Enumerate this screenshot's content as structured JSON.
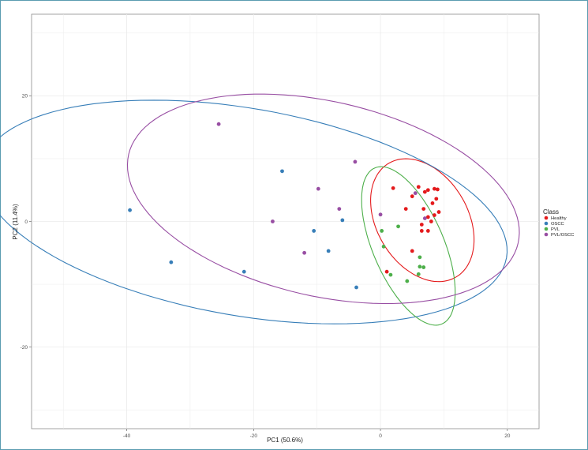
{
  "chart_data": {
    "type": "scatter",
    "xlabel": "PC1 (50.6%)",
    "ylabel": "PC2 (11.4%)",
    "xlim": [
      -55,
      25
    ],
    "ylim": [
      -33,
      33
    ],
    "xticks": [
      -40,
      -20,
      0,
      20
    ],
    "yticks": [
      -20,
      0,
      20
    ],
    "xtick_labels": [
      "-40",
      "-20",
      "0",
      "20"
    ],
    "ytick_labels": [
      "-20",
      "0",
      "20"
    ],
    "grid": true,
    "legend": {
      "title": "Class",
      "placement": "right"
    },
    "series": [
      {
        "name": "Healthy",
        "color": "#e41a1c",
        "points": [
          [
            2,
            5.3
          ],
          [
            6,
            5.5
          ],
          [
            5,
            4
          ],
          [
            7,
            4.7
          ],
          [
            7.5,
            5
          ],
          [
            8.5,
            5.2
          ],
          [
            9,
            5.1
          ],
          [
            8.8,
            3.6
          ],
          [
            8.2,
            2.9
          ],
          [
            6.8,
            2
          ],
          [
            4,
            2
          ],
          [
            9.2,
            1.5
          ],
          [
            8.5,
            1
          ],
          [
            7.5,
            0.7
          ],
          [
            8,
            0
          ],
          [
            6.5,
            -0.5
          ],
          [
            7.5,
            -1.5
          ],
          [
            6.5,
            -1.5
          ],
          [
            5,
            -4.7
          ],
          [
            1,
            -8
          ]
        ],
        "ellipse": {
          "cx": 6.6,
          "cy": 0.2,
          "rx": 7.2,
          "ry": 10.5,
          "angle": 30
        }
      },
      {
        "name": "OSCC",
        "color": "#377eb8",
        "points": [
          [
            -39.5,
            1.8
          ],
          [
            -33,
            -6.5
          ],
          [
            -21.5,
            -8
          ],
          [
            -15.5,
            8
          ],
          [
            -10.5,
            -1.5
          ],
          [
            -8.2,
            -4.7
          ],
          [
            -6,
            0.2
          ],
          [
            -3.8,
            -10.5
          ]
        ],
        "ellipse": {
          "cx": -21.5,
          "cy": 1.5,
          "rx": 42,
          "ry": 16.5,
          "angle": -10
        }
      },
      {
        "name": "PVL",
        "color": "#4daf4a",
        "points": [
          [
            2.8,
            -0.8
          ],
          [
            0.2,
            -1.5
          ],
          [
            0.5,
            -4
          ],
          [
            6.2,
            -5.7
          ],
          [
            6.2,
            -7.2
          ],
          [
            6.8,
            -7.3
          ],
          [
            1.6,
            -8.5
          ],
          [
            6,
            -8.4
          ],
          [
            4.2,
            -9.5
          ]
        ],
        "ellipse": {
          "cx": 4.4,
          "cy": -3.9,
          "rx": 5.6,
          "ry": 13.5,
          "angle": 23
        }
      },
      {
        "name": "PVL/OSCC",
        "color": "#984ea3",
        "points": [
          [
            -25.5,
            15.5
          ],
          [
            -4,
            9.5
          ],
          [
            -9.8,
            5.2
          ],
          [
            5.5,
            4.5
          ],
          [
            -6.5,
            2
          ],
          [
            0,
            1.1
          ],
          [
            -17,
            0
          ],
          [
            7,
            0.5
          ],
          [
            -12,
            -5
          ]
        ],
        "ellipse": {
          "cx": -9,
          "cy": 3.6,
          "rx": 31.5,
          "ry": 15.5,
          "angle": -13
        }
      }
    ]
  }
}
